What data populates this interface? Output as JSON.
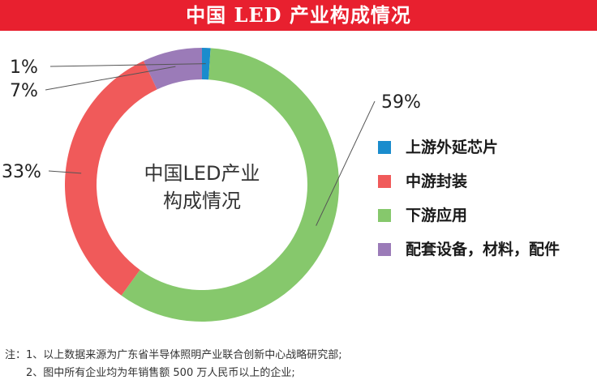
{
  "title": "中国 LED 产业构成情况",
  "chart_data": {
    "type": "pie",
    "center_text": [
      "中国LED产业",
      "构成情况"
    ],
    "slices": [
      {
        "label": "上游外延芯片",
        "value": 1,
        "value_label": "1%",
        "color": "#1a8ccd"
      },
      {
        "label": "下游应用",
        "value": 59,
        "value_label": "59%",
        "color": "#86c86c"
      },
      {
        "label": "中游封装",
        "value": 33,
        "value_label": "33%",
        "color": "#f05a5a"
      },
      {
        "label": "配套设备，材料，配件",
        "value": 7,
        "value_label": "7%",
        "color": "#9b7bb8"
      }
    ],
    "legend": [
      {
        "label": "上游外延芯片",
        "color": "#1a8ccd"
      },
      {
        "label": "中游封装",
        "color": "#f05a5a"
      },
      {
        "label": "下游应用",
        "color": "#86c86c"
      },
      {
        "label": "配套设备，材料，配件",
        "color": "#9b7bb8"
      }
    ],
    "legend_position": "right"
  },
  "notes": {
    "prefix": "注：",
    "lines": [
      "1、以上数据来源为广东省半导体照明产业联合创新中心战略研究部;",
      "2、图中所有企业均为年销售额 500 万人民币以上的企业;"
    ]
  }
}
